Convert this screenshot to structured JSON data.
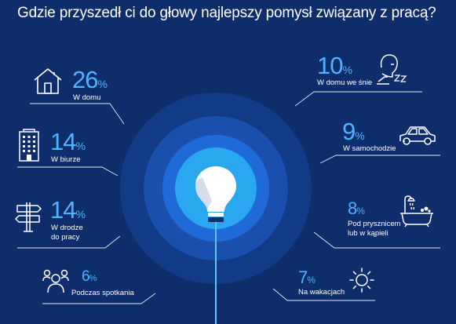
{
  "title": "Gdzie przyszedł ci do głowy najlepszy pomysł związany z pracą?",
  "colors": {
    "background": "#0e2d6b",
    "accent": "#4fb4ff",
    "ring_outer": "#123a86",
    "ring_mid": "#1a4fae",
    "ring_inner": "#1f6ad6",
    "core": "#29a7ef"
  },
  "chart_data": {
    "type": "table",
    "percent_symbol": "%",
    "items": [
      {
        "value": 26,
        "label": "W domu",
        "icon": "house-icon"
      },
      {
        "value": 14,
        "label": "W biurze",
        "icon": "office-building-icon"
      },
      {
        "value": 14,
        "label": "W drodze\ndo pracy",
        "icon": "signpost-icon"
      },
      {
        "value": 6,
        "label": "Podczas spotkania",
        "icon": "meeting-people-icon"
      },
      {
        "value": 10,
        "label": "W domu we śnie",
        "icon": "sleeping-person-icon"
      },
      {
        "value": 9,
        "label": "W samochodzie",
        "icon": "car-icon"
      },
      {
        "value": 8,
        "label": "Pod prysznicem\nlub w kąpieli",
        "icon": "bathtub-shower-icon"
      },
      {
        "value": 7,
        "label": "Na wakacjach",
        "icon": "sun-icon"
      }
    ]
  },
  "center_icon": "lightbulb-icon"
}
